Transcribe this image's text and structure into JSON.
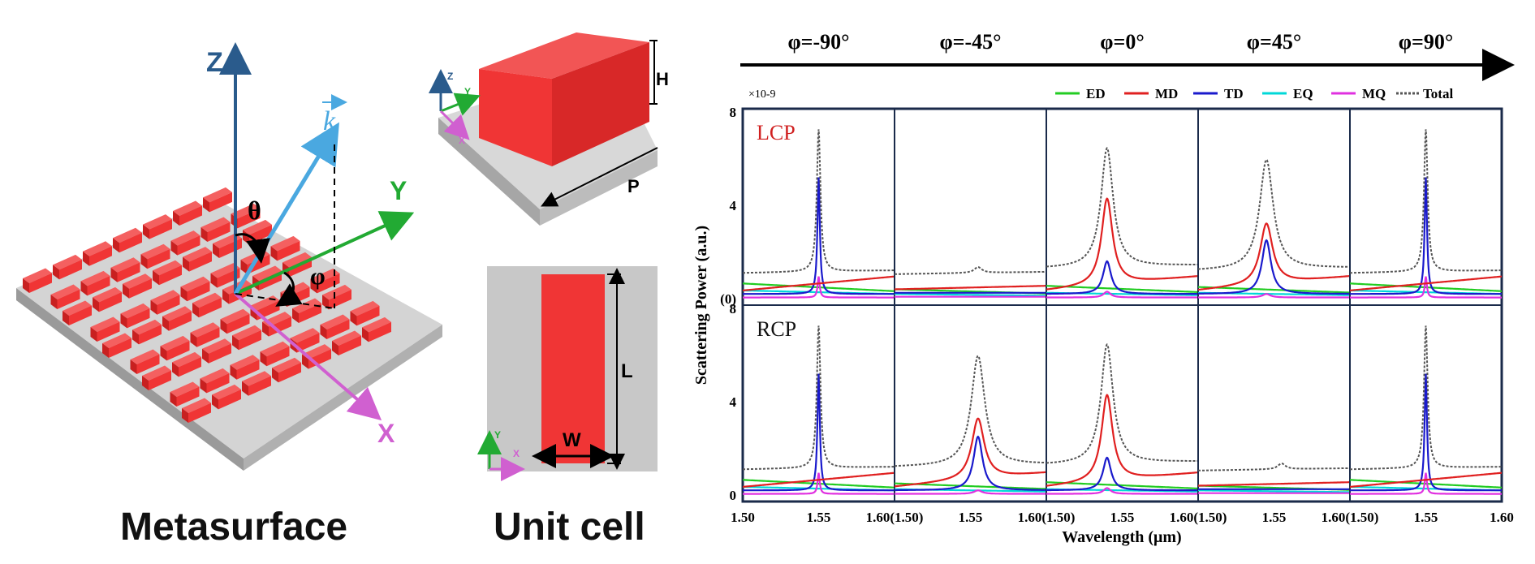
{
  "figure": {
    "metasurface": {
      "caption": "Metasurface",
      "axis_z": "Z",
      "axis_y": "Y",
      "axis_x": "X",
      "k_label": "k",
      "theta": "θ",
      "phi": "φ"
    },
    "unit_cell": {
      "caption": "Unit cell",
      "label_h": "H",
      "label_p": "P",
      "label_l": "L",
      "label_w": "W",
      "mini_z": "Z",
      "mini_y": "Y",
      "mini_x": "X"
    },
    "phi_headers": [
      "φ=-90°",
      "φ=-45°",
      "φ=0°",
      "φ=45°",
      "φ=90°"
    ],
    "row_labels": [
      "LCP",
      "RCP"
    ],
    "colors": {
      "ED": "#22cc22",
      "MD": "#e02020",
      "TD": "#1a1acc",
      "EQ": "#00d8d8",
      "MQ": "#e030e0",
      "Total": "#555555",
      "red_block": "#f03535",
      "substrate": "#c8c8c8",
      "axis_z": "#2a5b8c",
      "axis_y": "#22aa33",
      "axis_x": "#d060d0",
      "axis_k": "#4aa8e0"
    }
  },
  "chart_data": {
    "type": "line",
    "scale_label": "×10-9",
    "ylabel": "Scattering Power (a.u.)",
    "xlabel": "Wavelength (μm)",
    "ylim": [
      0,
      8
    ],
    "yticks": [
      [
        "8",
        8
      ],
      [
        "4",
        4
      ],
      [
        "(0)",
        0
      ]
    ],
    "yticks_bottom": [
      [
        "8",
        8
      ],
      [
        "4",
        4
      ],
      [
        "0",
        0
      ]
    ],
    "xlim": [
      1.5,
      1.6
    ],
    "xtick_labels": [
      [
        "1.50",
        "1.55",
        "1.60"
      ],
      [
        "(1.50)",
        "1.55",
        "1.60"
      ],
      [
        "(1.50)",
        "1.55",
        "1.60"
      ],
      [
        "(1.50)",
        "1.55",
        "1.60"
      ],
      [
        "(1.50)",
        "1.55",
        "1.60"
      ]
    ],
    "legend": [
      "ED",
      "MD",
      "TD",
      "EQ",
      "MQ",
      "Total"
    ],
    "legend_position": "top-right",
    "panels": [
      {
        "row": "LCP",
        "phi": "φ=-90°",
        "peak": 1.55,
        "width": 0.0012,
        "Total": 7.2,
        "MD": 0.0,
        "TD": 5.0,
        "MQ": 0.9,
        "ED": 0.55,
        "EQ": 0.3,
        "base": 1.1
      },
      {
        "row": "LCP",
        "phi": "φ=-45°",
        "peak": 1.555,
        "width": 0.003,
        "Total": 0.25,
        "MD": 0.0,
        "TD": 0.0,
        "MQ": 0.0,
        "ED": 0.3,
        "EQ": 0.15,
        "base": 1.05
      },
      {
        "row": "LCP",
        "phi": "φ=0°",
        "peak": 1.54,
        "width": 0.004,
        "Total": 6.4,
        "MD": 3.7,
        "TD": 1.4,
        "MQ": 0.25,
        "ED": 0.45,
        "EQ": 0.2,
        "base": 1.3
      },
      {
        "row": "LCP",
        "phi": "φ=45°",
        "peak": 1.545,
        "width": 0.0045,
        "Total": 5.9,
        "MD": 2.6,
        "TD": 2.3,
        "MQ": 0.15,
        "ED": 0.4,
        "EQ": 0.2,
        "base": 1.2
      },
      {
        "row": "LCP",
        "phi": "φ=90°",
        "peak": 1.55,
        "width": 0.0012,
        "Total": 7.2,
        "MD": 0.0,
        "TD": 5.0,
        "MQ": 0.9,
        "ED": 0.55,
        "EQ": 0.3,
        "base": 1.1
      },
      {
        "row": "RCP",
        "phi": "φ=-90°",
        "peak": 1.55,
        "width": 0.0012,
        "Total": 7.2,
        "MD": 0.0,
        "TD": 5.0,
        "MQ": 0.9,
        "ED": 0.55,
        "EQ": 0.3,
        "base": 1.1
      },
      {
        "row": "RCP",
        "phi": "φ=-45°",
        "peak": 1.555,
        "width": 0.0045,
        "Total": 5.9,
        "MD": 2.6,
        "TD": 2.3,
        "MQ": 0.15,
        "ED": 0.4,
        "EQ": 0.2,
        "base": 1.2
      },
      {
        "row": "RCP",
        "phi": "φ=0°",
        "peak": 1.54,
        "width": 0.004,
        "Total": 6.4,
        "MD": 3.7,
        "TD": 1.4,
        "MQ": 0.25,
        "ED": 0.45,
        "EQ": 0.2,
        "base": 1.3
      },
      {
        "row": "RCP",
        "phi": "φ=45°",
        "peak": 1.555,
        "width": 0.003,
        "Total": 0.25,
        "MD": 0.0,
        "TD": 0.0,
        "MQ": 0.0,
        "ED": 0.3,
        "EQ": 0.15,
        "base": 1.05
      },
      {
        "row": "RCP",
        "phi": "φ=90°",
        "peak": 1.55,
        "width": 0.0012,
        "Total": 7.2,
        "MD": 0.0,
        "TD": 5.0,
        "MQ": 0.9,
        "ED": 0.55,
        "EQ": 0.3,
        "base": 1.1
      }
    ]
  }
}
